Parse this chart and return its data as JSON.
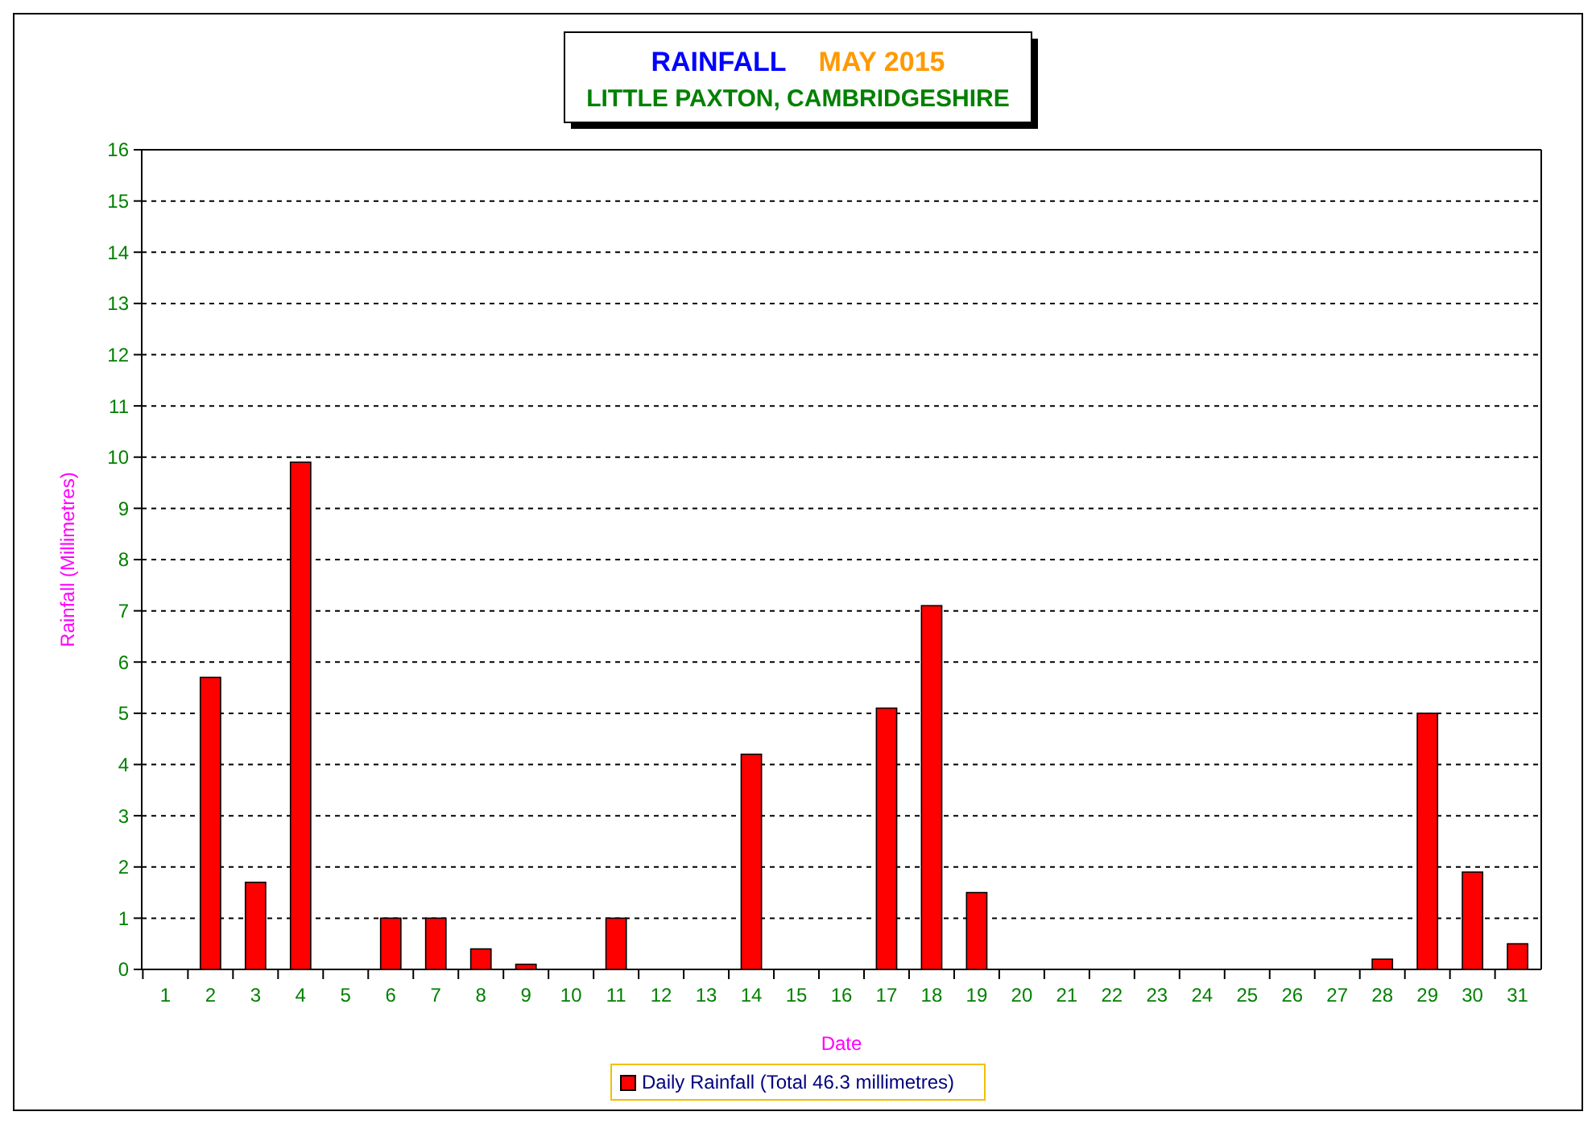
{
  "chart_data": {
    "type": "bar",
    "title": "RAINFALL",
    "subtitle": "LITTLE PAXTON, CAMBRIDGESHIRE",
    "annotations": [
      "MAY 2015"
    ],
    "xlabel": "Date",
    "ylabel": "Rainfall  (Millimetres)",
    "categories": [
      "1",
      "2",
      "3",
      "4",
      "5",
      "6",
      "7",
      "8",
      "9",
      "10",
      "11",
      "12",
      "13",
      "14",
      "15",
      "16",
      "17",
      "18",
      "19",
      "20",
      "21",
      "22",
      "23",
      "24",
      "25",
      "26",
      "27",
      "28",
      "29",
      "30",
      "31"
    ],
    "series": [
      {
        "name": "Daily Rainfall (Total 46.3 millimetres)",
        "color": "#ff0000",
        "values": [
          0,
          5.7,
          1.7,
          9.9,
          0,
          1.0,
          1.0,
          0.4,
          0.1,
          0,
          1.0,
          0,
          0,
          4.2,
          0,
          0,
          5.1,
          7.1,
          1.5,
          0,
          0,
          0,
          0,
          0,
          0,
          0,
          0,
          0.2,
          5.0,
          1.9,
          0.5
        ]
      }
    ],
    "ylim": [
      0,
      16
    ],
    "yticks": [
      0,
      1,
      2,
      3,
      4,
      5,
      6,
      7,
      8,
      9,
      10,
      11,
      12,
      13,
      14,
      15,
      16
    ],
    "grid": "y",
    "legend": "bottom"
  }
}
